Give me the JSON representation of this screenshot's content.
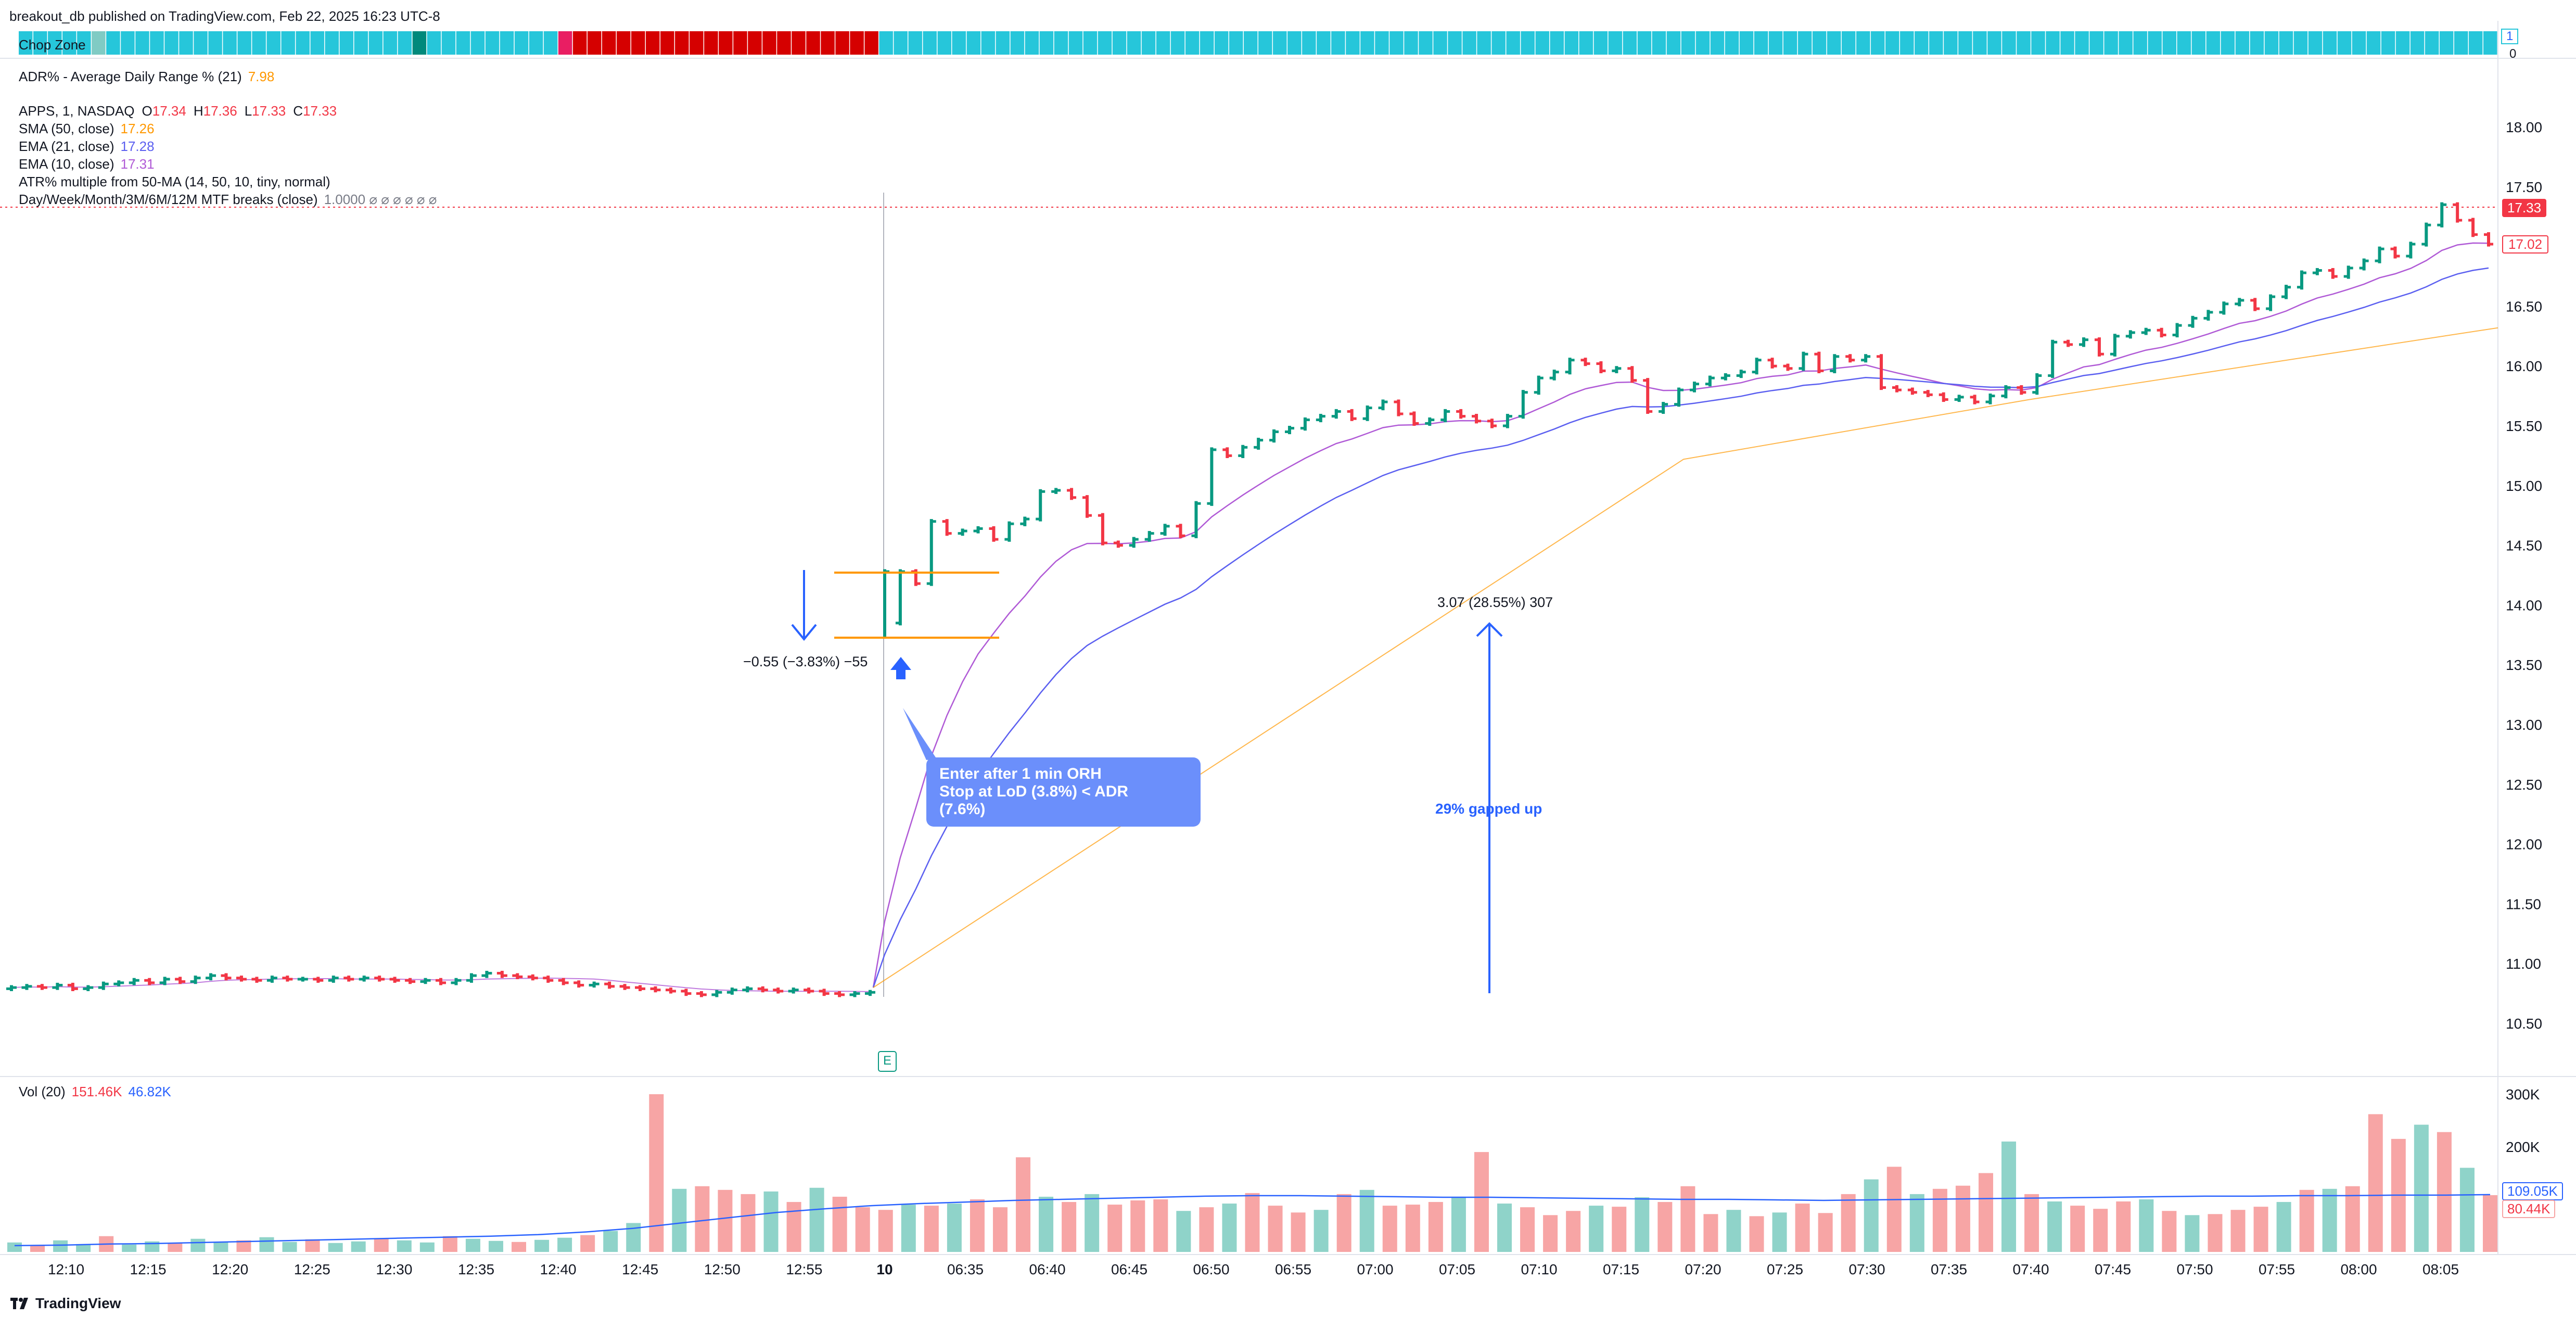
{
  "header": {
    "published": "breakout_db published on TradingView.com, Feb 22, 2025 16:23 UTC-8"
  },
  "chop_zone": {
    "label": "Chop Zone",
    "value_top": "1",
    "value_bottom": "0"
  },
  "adr": {
    "label": "ADR% - Average Daily Range % (21)",
    "value": "7.98"
  },
  "symbol": {
    "name": "APPS, 1, NASDAQ",
    "o_label": "O",
    "o": "17.34",
    "h_label": "H",
    "h": "17.36",
    "l_label": "L",
    "l": "17.33",
    "c_label": "C",
    "c": "17.33"
  },
  "indicators": [
    {
      "label": "SMA (50, close)",
      "value": "17.26",
      "color": "#ff9800"
    },
    {
      "label": "EMA (21, close)",
      "value": "17.28",
      "color": "#5b5ff0"
    },
    {
      "label": "EMA (10, close)",
      "value": "17.31",
      "color": "#b05ad6"
    },
    {
      "label": "ATR% multiple from 50-MA (14, 50, 10, tiny, normal)",
      "value": "",
      "color": "#131722"
    },
    {
      "label": "Day/Week/Month/3M/6M/12M MTF breaks (close)",
      "value": "1.0000  ⌀  ⌀  ⌀  ⌀  ⌀  ⌀",
      "color": "#787b86"
    }
  ],
  "price_axis": {
    "ticks": [
      "18.00",
      "17.50",
      "17.00",
      "16.50",
      "16.00",
      "15.50",
      "15.00",
      "14.50",
      "14.00",
      "13.50",
      "13.00",
      "12.50",
      "12.00",
      "11.50",
      "11.00",
      "10.50"
    ],
    "last_price": "17.33",
    "last_price_color": "#f23645",
    "second_price": "17.02"
  },
  "time_axis": {
    "ticks": [
      "12:10",
      "12:15",
      "12:20",
      "12:25",
      "12:30",
      "12:35",
      "12:40",
      "12:45",
      "12:50",
      "12:55",
      "10",
      "06:35",
      "06:40",
      "06:45",
      "06:50",
      "06:55",
      "07:00",
      "07:05",
      "07:10",
      "07:15",
      "07:20",
      "07:25",
      "07:30",
      "07:35",
      "07:40",
      "07:45",
      "07:50",
      "07:55",
      "08:00",
      "08:05"
    ]
  },
  "volume": {
    "label": "Vol (20)",
    "value1": "151.46K",
    "value2": "46.82K",
    "axis_ticks": [
      "300K",
      "200K"
    ],
    "ma_badge": "109.05K",
    "last_badge": "80.44K"
  },
  "annotations": {
    "drop_label": "−0.55 (−3.83%) −55",
    "gap_measure": "3.07 (28.55%) 307",
    "gap_text": "29% gapped up",
    "callout_line1": "Enter after 1 min ORH",
    "callout_line2": "Stop at LoD (3.8%) < ADR",
    "callout_line3": "(7.6%)",
    "earnings_marker": "E"
  },
  "footer": {
    "brand": "TradingView"
  },
  "colors": {
    "up": "#089981",
    "down": "#f23645",
    "vol_up": "#8fd3c9",
    "vol_down": "#f7a5a5",
    "sma50": "#ff9800",
    "ema21": "#5b5ff0",
    "ema10": "#b05ad6",
    "annotation_blue": "#2962ff",
    "orange_line": "#ff9800",
    "chop_teal": "#26c6da",
    "chop_red": "#d50000"
  },
  "chart_data": {
    "type": "candlestick",
    "title": "APPS, 1, NASDAQ",
    "ylim": [
      10.2,
      18.3
    ],
    "x_ticks": [
      "12:10",
      "12:15",
      "12:20",
      "12:25",
      "12:30",
      "12:35",
      "12:40",
      "12:45",
      "12:50",
      "12:55",
      "10",
      "06:35",
      "06:40",
      "06:45",
      "06:50",
      "06:55",
      "07:00",
      "07:05",
      "07:10",
      "07:15",
      "07:20",
      "07:25",
      "07:30",
      "07:35",
      "07:40",
      "07:45",
      "07:50",
      "07:55",
      "08:00",
      "08:05"
    ],
    "premarket_closes": [
      10.8,
      10.81,
      10.8,
      10.82,
      10.79,
      10.8,
      10.83,
      10.84,
      10.86,
      10.84,
      10.87,
      10.85,
      10.88,
      10.9,
      10.88,
      10.87,
      10.86,
      10.88,
      10.87,
      10.87,
      10.86,
      10.88,
      10.87,
      10.88,
      10.87,
      10.86,
      10.85,
      10.86,
      10.84,
      10.86,
      10.9,
      10.92,
      10.9,
      10.89,
      10.88,
      10.86,
      10.84,
      10.82,
      10.83,
      10.81,
      10.8,
      10.79,
      10.78,
      10.77,
      10.75,
      10.74,
      10.76,
      10.78,
      10.79,
      10.78,
      10.77,
      10.78,
      10.77,
      10.75,
      10.74,
      10.75,
      10.76
    ],
    "session_closes": [
      13.85,
      14.28,
      14.18,
      14.7,
      14.6,
      14.62,
      14.64,
      14.55,
      14.68,
      14.72,
      14.95,
      14.96,
      14.9,
      14.75,
      14.52,
      14.5,
      14.55,
      14.6,
      14.66,
      14.58,
      14.85,
      15.3,
      15.25,
      15.32,
      15.38,
      15.45,
      15.48,
      15.55,
      15.58,
      15.62,
      15.56,
      15.65,
      15.7,
      15.6,
      15.52,
      15.55,
      15.62,
      15.58,
      15.54,
      15.5,
      15.58,
      15.78,
      15.9,
      15.95,
      16.05,
      16.02,
      15.96,
      15.98,
      15.88,
      15.62,
      15.68,
      15.8,
      15.85,
      15.9,
      15.92,
      15.95,
      16.05,
      16.0,
      15.98,
      16.1,
      15.96,
      16.08,
      16.05,
      16.08,
      15.82,
      15.8,
      15.78,
      15.76,
      15.72,
      15.74,
      15.7,
      15.75,
      15.82,
      15.78,
      15.92,
      16.2,
      16.18,
      16.22,
      16.1,
      16.25,
      16.28,
      16.3,
      16.26,
      16.34,
      16.4,
      16.45,
      16.52,
      16.55,
      16.48,
      16.58,
      16.66,
      16.78,
      16.8,
      16.75,
      16.82,
      16.88,
      16.98,
      16.92,
      17.02,
      17.18,
      17.35,
      17.22,
      17.1,
      17.02
    ],
    "volume": [
      18,
      12,
      22,
      15,
      30,
      14,
      20,
      16,
      25,
      18,
      22,
      28,
      19,
      24,
      17,
      20,
      26,
      22,
      18,
      30,
      25,
      21,
      19,
      23,
      27,
      32,
      40,
      55,
      300,
      120,
      125,
      118,
      110,
      115,
      95,
      122,
      105,
      85,
      80,
      90,
      88,
      92,
      100,
      85,
      180,
      105,
      95,
      110,
      90,
      98,
      100,
      78,
      85,
      92,
      112,
      88,
      75,
      80,
      110,
      118,
      88,
      90,
      95,
      105,
      190,
      92,
      85,
      70,
      78,
      88,
      86,
      104,
      95,
      125,
      72,
      80,
      68,
      75,
      92,
      74,
      110,
      138,
      162,
      110,
      120,
      126,
      150,
      210,
      110,
      96,
      88,
      82,
      96,
      100,
      78,
      70,
      72,
      80,
      86,
      95,
      118,
      120,
      125,
      262,
      215,
      242,
      228,
      160,
      108
    ],
    "volume_ma": [
      12,
      13,
      15,
      16,
      18,
      20,
      22,
      24,
      26,
      28,
      30,
      33,
      38,
      45,
      55,
      65,
      75,
      82,
      88,
      92,
      95,
      98,
      100,
      102,
      104,
      106,
      107,
      107,
      106,
      105,
      104,
      104,
      103,
      102,
      101,
      100,
      100,
      99,
      98,
      99,
      100,
      101,
      102,
      103,
      104,
      105,
      106,
      106,
      107,
      107,
      108,
      108,
      109
    ]
  }
}
